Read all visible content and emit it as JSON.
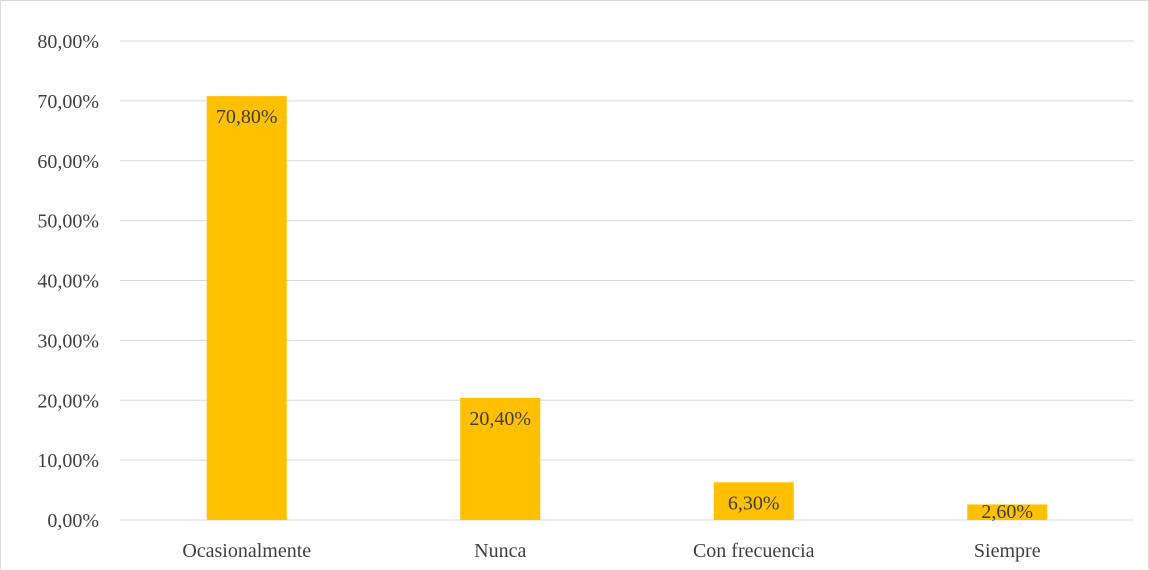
{
  "chart_data": {
    "type": "bar",
    "categories": [
      "Ocasionalmente",
      "Nunca",
      "Con frecuencia",
      "Siempre"
    ],
    "values": [
      70.8,
      20.4,
      6.3,
      2.6
    ],
    "data_labels": [
      "70,80%",
      "20,40%",
      "6,30%",
      "2,60%"
    ],
    "y_ticks": [
      0,
      10,
      20,
      30,
      40,
      50,
      60,
      70,
      80
    ],
    "y_tick_labels": [
      "0,00%",
      "10,00%",
      "20,00%",
      "30,00%",
      "40,00%",
      "50,00%",
      "60,00%",
      "70,00%",
      "80,00%"
    ],
    "ylim": [
      0,
      80
    ],
    "grid": true,
    "legend": "none",
    "bar_color": "#FFC000",
    "grid_color": "#d9d9d9",
    "text_color": "#404040"
  }
}
